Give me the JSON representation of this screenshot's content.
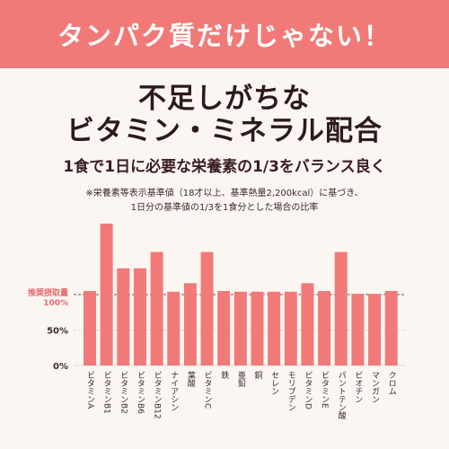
{
  "banner": {
    "text": "タンパク質だけじゃない！"
  },
  "heading": {
    "line1": "不足しがちな",
    "line2": "ビタミン・ミネラル配合"
  },
  "subheading": "1食で1日に必要な栄養素の1/3をバランス良く",
  "note": {
    "line1": "※栄養素等表示基準値（18才以上、基準熱量2,200kcal）に基づき、",
    "line2": "1日分の基準値の1/3を1食分とした場合の比率"
  },
  "colors": {
    "bar": "#f17a78",
    "accent": "#e8686a",
    "text": "#3a2a2a"
  },
  "chart_data": {
    "type": "bar",
    "ylim": [
      0,
      215
    ],
    "yticks": [
      {
        "value": 0,
        "label": "0%"
      },
      {
        "value": 50,
        "label": "50%"
      },
      {
        "value": 100,
        "label": "100%"
      }
    ],
    "reference_line": {
      "value": 100,
      "label": "推奨摂取量"
    },
    "categories": [
      "ビタミンA",
      "ビタミンB1",
      "ビタミンB2",
      "ビタミンB6",
      "ビタミンB12",
      "ナイアシン",
      "葉酸",
      "ビタミンC",
      "鉄",
      "亜鉛",
      "銅",
      "セレン",
      "モリブデン",
      "ビタミンD",
      "ビタミンE",
      "パントテン酸",
      "ビオチン",
      "マンガン",
      "クロム"
    ],
    "values": [
      105,
      200,
      137,
      137,
      160,
      104,
      116,
      160,
      105,
      104,
      104,
      104,
      104,
      116,
      105,
      160,
      101,
      101,
      105
    ]
  }
}
